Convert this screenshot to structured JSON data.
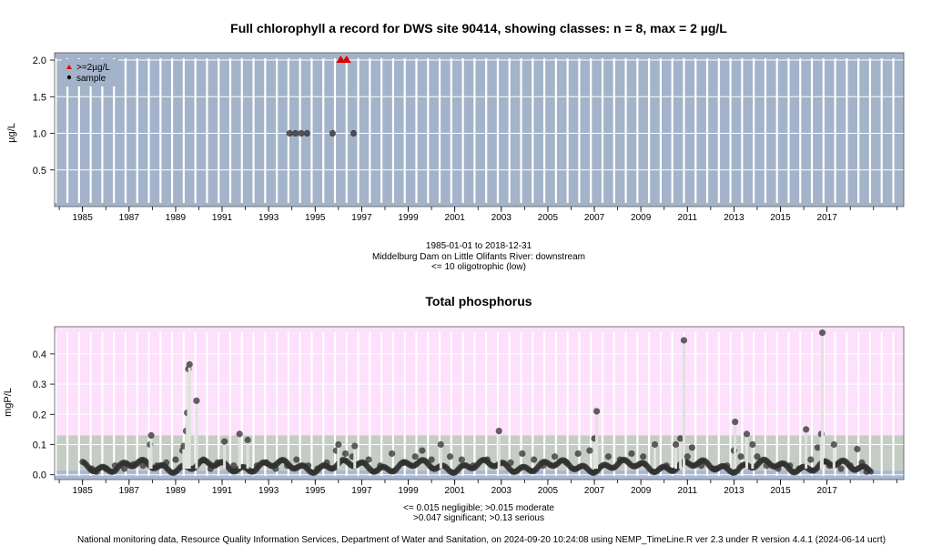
{
  "footer": "National monitoring data, Resource Quality Information Services, Department of Water and Sanitation, on 2024-09-20 10:24:08 using NEMP_TimeLine.R ver 2.3 under R version 4.4.1 (2024-06-14 ucrt)",
  "colors": {
    "chl_bg": "#a3b3c9",
    "tp_bg": "#c5ccc4",
    "tp_band_pink": "#fde0fb",
    "tp_band_blue": "#a9b9d3",
    "grid_white": "#ffffff",
    "point": "#303030",
    "threshold": "#e00000"
  },
  "chart_data": [
    {
      "type": "scatter",
      "title": "Full chlorophyll a record for DWS site 90414, showing classes: n = 8, max = 2 µg/L",
      "ylabel": "µg/L",
      "xlabel": "",
      "xlim": [
        1983.8,
        2020.3
      ],
      "ylim": [
        0,
        2.1
      ],
      "yticks": [
        "0.5",
        "1.0",
        "1.5",
        "2.0"
      ],
      "xticks": [
        "1985",
        "1987",
        "1989",
        "1991",
        "1993",
        "1995",
        "1997",
        "1999",
        "2001",
        "2003",
        "2005",
        "2007",
        "2009",
        "2011",
        "2013",
        "2015",
        "2017"
      ],
      "grid": true,
      "legend_position": "top-left",
      "legend": [
        {
          "name": ">=2µg/L",
          "marker": "triangle",
          "color": "#e00000"
        },
        {
          "name": "sample",
          "marker": "circle",
          "color": "#000000"
        }
      ],
      "series": [
        {
          "name": "sample",
          "points": [
            [
              1993.9,
              1.0
            ],
            [
              1994.15,
              1.0
            ],
            [
              1994.4,
              1.0
            ],
            [
              1994.65,
              1.0
            ],
            [
              1995.75,
              1.0
            ],
            [
              1996.65,
              1.0
            ]
          ]
        },
        {
          "name": ">=2µg/L",
          "points": [
            [
              1996.1,
              2.0
            ],
            [
              1996.35,
              2.0
            ]
          ]
        }
      ],
      "notes": [
        "1985-01-01 to 2018-12-31",
        "Middelburg Dam on Little Olifants River: downstream",
        "<= 10 oligotrophic (low)"
      ]
    },
    {
      "type": "scatter",
      "title": "Total phosphorus",
      "ylabel": "mgP/L",
      "xlabel": "",
      "xlim": [
        1983.8,
        2020.3
      ],
      "ylim": [
        -0.016,
        0.49
      ],
      "yticks": [
        "0.0",
        "0.1",
        "0.2",
        "0.3",
        "0.4"
      ],
      "xticks": [
        "1985",
        "1987",
        "1989",
        "1991",
        "1993",
        "1995",
        "1997",
        "1999",
        "2001",
        "2003",
        "2005",
        "2007",
        "2009",
        "2011",
        "2013",
        "2015",
        "2017"
      ],
      "grid": true,
      "bands": [
        {
          "label": "negligible",
          "from": -0.016,
          "to": 0.015
        },
        {
          "label": "moderate",
          "from": 0.015,
          "to": 0.13
        },
        {
          "label": "serious",
          "from": 0.13,
          "to": 0.49
        }
      ],
      "series": [
        {
          "name": "total phosphorus",
          "points": [
            [
              1985.4,
              0.02
            ],
            [
              1985.6,
              0.01
            ],
            [
              1986.0,
              0.02
            ],
            [
              1986.4,
              0.03
            ],
            [
              1986.8,
              0.02
            ],
            [
              1987.2,
              0.035
            ],
            [
              1987.6,
              0.03
            ],
            [
              1987.9,
              0.1
            ],
            [
              1987.95,
              0.13
            ],
            [
              1988.2,
              0.03
            ],
            [
              1988.6,
              0.04
            ],
            [
              1989.0,
              0.05
            ],
            [
              1989.3,
              0.08
            ],
            [
              1989.35,
              0.095
            ],
            [
              1989.45,
              0.145
            ],
            [
              1989.5,
              0.205
            ],
            [
              1989.55,
              0.35
            ],
            [
              1989.6,
              0.365
            ],
            [
              1989.9,
              0.245
            ],
            [
              1990.2,
              0.05
            ],
            [
              1990.5,
              0.02
            ],
            [
              1990.8,
              0.04
            ],
            [
              1991.1,
              0.11
            ],
            [
              1991.5,
              0.03
            ],
            [
              1991.75,
              0.135
            ],
            [
              1992.1,
              0.115
            ],
            [
              1992.5,
              0.03
            ],
            [
              1992.9,
              0.04
            ],
            [
              1993.3,
              0.02
            ],
            [
              1993.8,
              0.03
            ],
            [
              1994.2,
              0.05
            ],
            [
              1994.7,
              0.03
            ],
            [
              1995.1,
              0.02
            ],
            [
              1995.5,
              0.04
            ],
            [
              1995.9,
              0.08
            ],
            [
              1996.0,
              0.1
            ],
            [
              1996.3,
              0.07
            ],
            [
              1996.6,
              0.06
            ],
            [
              1996.7,
              0.095
            ],
            [
              1997.3,
              0.05
            ],
            [
              1997.8,
              0.03
            ],
            [
              1998.3,
              0.07
            ],
            [
              1998.8,
              0.04
            ],
            [
              1999.3,
              0.06
            ],
            [
              1999.6,
              0.08
            ],
            [
              2000.0,
              0.05
            ],
            [
              2000.4,
              0.1
            ],
            [
              2000.8,
              0.06
            ],
            [
              2001.3,
              0.05
            ],
            [
              2001.8,
              0.03
            ],
            [
              2002.4,
              0.05
            ],
            [
              2002.9,
              0.145
            ],
            [
              2003.4,
              0.04
            ],
            [
              2003.9,
              0.07
            ],
            [
              2004.4,
              0.05
            ],
            [
              2004.8,
              0.03
            ],
            [
              2005.3,
              0.06
            ],
            [
              2005.8,
              0.04
            ],
            [
              2006.3,
              0.07
            ],
            [
              2006.8,
              0.08
            ],
            [
              2007.0,
              0.12
            ],
            [
              2007.1,
              0.21
            ],
            [
              2007.6,
              0.06
            ],
            [
              2008.1,
              0.05
            ],
            [
              2008.6,
              0.07
            ],
            [
              2009.1,
              0.06
            ],
            [
              2009.6,
              0.1
            ],
            [
              2010.1,
              0.03
            ],
            [
              2010.5,
              0.1
            ],
            [
              2010.7,
              0.12
            ],
            [
              2010.85,
              0.445
            ],
            [
              2011.0,
              0.06
            ],
            [
              2011.2,
              0.09
            ],
            [
              2011.6,
              0.03
            ],
            [
              2012.2,
              0.02
            ],
            [
              2012.7,
              0.03
            ],
            [
              2013.0,
              0.08
            ],
            [
              2013.05,
              0.175
            ],
            [
              2013.3,
              0.06
            ],
            [
              2013.55,
              0.135
            ],
            [
              2013.8,
              0.1
            ],
            [
              2014.0,
              0.06
            ],
            [
              2014.4,
              0.03
            ],
            [
              2014.9,
              0.02
            ],
            [
              2015.4,
              0.03
            ],
            [
              2015.8,
              0.02
            ],
            [
              2016.1,
              0.15
            ],
            [
              2016.3,
              0.05
            ],
            [
              2016.6,
              0.09
            ],
            [
              2016.75,
              0.135
            ],
            [
              2016.8,
              0.47
            ],
            [
              2017.1,
              0.03
            ],
            [
              2017.3,
              0.1
            ],
            [
              2017.6,
              0.02
            ],
            [
              2018.0,
              0.03
            ],
            [
              2018.3,
              0.085
            ],
            [
              2018.5,
              0.04
            ],
            [
              2018.7,
              0.01
            ]
          ]
        }
      ],
      "notes": [
        "<= 0.015 negligible; >0.015 moderate",
        ">0.047 significant; >0.13 serious"
      ]
    }
  ]
}
